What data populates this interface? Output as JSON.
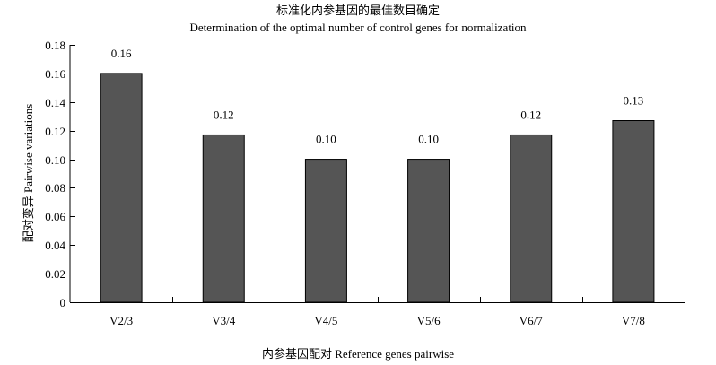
{
  "chart_data": {
    "type": "bar",
    "title": "标准化内参基因的最佳数目确定",
    "subtitle": "Determination of the optimal number of control genes for normalization",
    "xlabel": "内参基因配对 Reference genes pairwise",
    "ylabel": "配对变异 Pairwise variations",
    "categories": [
      "V2/3",
      "V3/4",
      "V4/5",
      "V5/6",
      "V6/7",
      "V7/8"
    ],
    "values": [
      0.16,
      0.117,
      0.1,
      0.1,
      0.117,
      0.127
    ],
    "data_labels": [
      "0.16",
      "0.12",
      "0.10",
      "0.10",
      "0.12",
      "0.13"
    ],
    "yticks": [
      "0",
      "0.02",
      "0.04",
      "0.06",
      "0.08",
      "0.10",
      "0.12",
      "0.14",
      "0.16",
      "0.18"
    ],
    "ylim": [
      0,
      0.18
    ],
    "grid": false,
    "legend": "none",
    "bar_color": "#555555"
  }
}
